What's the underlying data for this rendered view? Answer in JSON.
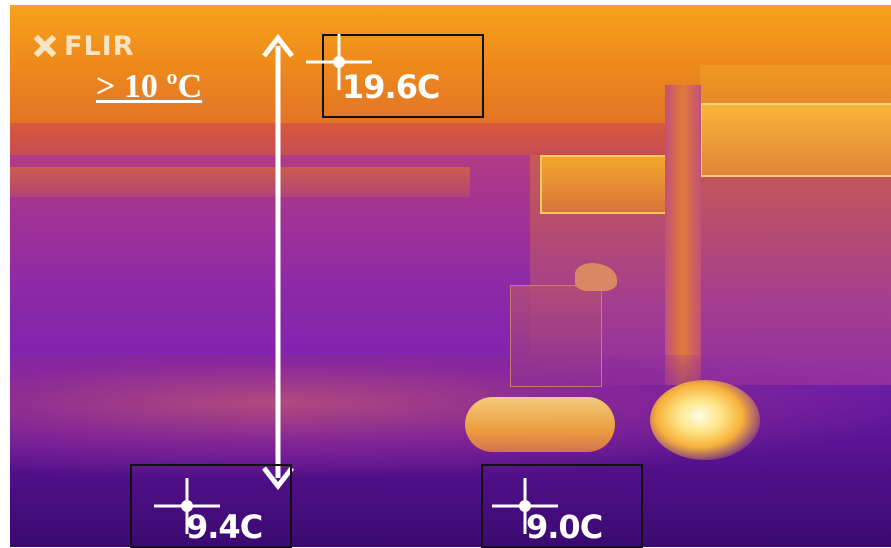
{
  "image": {
    "logo": "FLIR",
    "annotation": "> 10 ºC",
    "spots": [
      {
        "id": "ceiling",
        "reading": "19.6C"
      },
      {
        "id": "floor-left",
        "reading": "9.4C"
      },
      {
        "id": "floor-right",
        "reading": "9.0C"
      }
    ],
    "colors": {
      "hot": "#fde68a",
      "warm": "#f2a43a",
      "cool": "#8d2aa6",
      "cold": "#3a0a70",
      "marker": "#ffffff",
      "box": "#111111"
    },
    "icons": [
      "flir-logo-icon",
      "crosshair-icon",
      "double-arrow-icon"
    ]
  }
}
